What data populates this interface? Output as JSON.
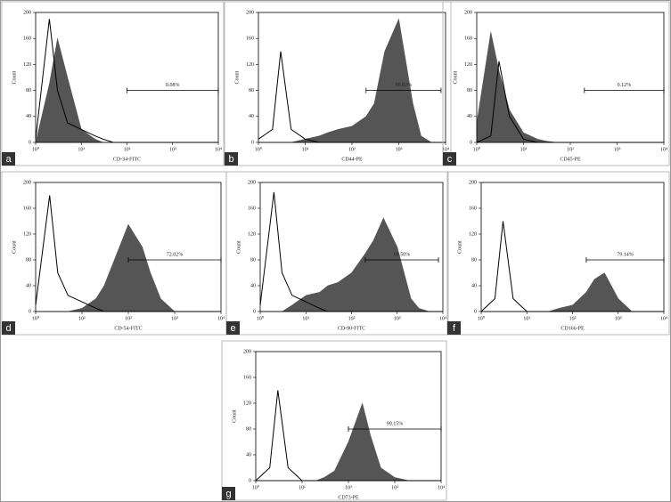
{
  "chart_data": [
    {
      "type": "histogram-overlay",
      "panel": "a",
      "xlabel": "CD-34-FITC",
      "ylabel": "Count",
      "xscale": "log",
      "xlim": [
        1,
        10000
      ],
      "ylim": [
        0,
        200
      ],
      "xticks": [
        {
          "value": 1,
          "label": "10⁰"
        },
        {
          "value": 10,
          "label": "10¹"
        },
        {
          "value": 100,
          "label": "10²"
        },
        {
          "value": 1000,
          "label": "10³"
        },
        {
          "value": 10000,
          "label": "10⁴"
        }
      ],
      "yticks": [
        0,
        40,
        80,
        120,
        160,
        200
      ],
      "x": [
        1,
        2,
        3,
        5,
        10,
        20,
        30,
        50,
        100,
        200,
        300,
        500,
        1000,
        2000,
        3000,
        5000,
        10000
      ],
      "series": [
        {
          "color": "#555555",
          "fill": true,
          "values": [
            0,
            90,
            160,
            100,
            20,
            5,
            0,
            0,
            0,
            0,
            0,
            0,
            0,
            0,
            0,
            0,
            0
          ]
        },
        {
          "color": "#000000",
          "fill": false,
          "values": [
            5,
            190,
            80,
            30,
            20,
            10,
            5,
            0,
            0,
            0,
            0,
            0,
            0,
            0,
            0,
            0,
            0
          ]
        }
      ],
      "gate": {
        "label": "0.08%",
        "x": [
          100,
          10000
        ],
        "y": 80
      }
    },
    {
      "type": "histogram-overlay",
      "panel": "b",
      "xlabel": "CD44-PE",
      "ylabel": "Count",
      "xscale": "log",
      "xlim": [
        1,
        10000
      ],
      "ylim": [
        0,
        200
      ],
      "xticks": [
        {
          "value": 1,
          "label": "10⁰"
        },
        {
          "value": 10,
          "label": "10¹"
        },
        {
          "value": 100,
          "label": "10²"
        },
        {
          "value": 1000,
          "label": "10³"
        },
        {
          "value": 10000,
          "label": "10⁴"
        }
      ],
      "yticks": [
        0,
        40,
        80,
        120,
        160,
        200
      ],
      "x": [
        1,
        2,
        3,
        5,
        10,
        20,
        30,
        50,
        100,
        200,
        300,
        500,
        1000,
        2000,
        3000,
        5000,
        10000
      ],
      "series": [
        {
          "color": "#555555",
          "fill": true,
          "values": [
            0,
            0,
            0,
            0,
            5,
            10,
            15,
            20,
            25,
            40,
            60,
            140,
            190,
            60,
            10,
            0,
            0
          ]
        },
        {
          "color": "#000000",
          "fill": false,
          "values": [
            5,
            20,
            140,
            20,
            5,
            0,
            0,
            0,
            0,
            0,
            0,
            0,
            0,
            0,
            0,
            0,
            0
          ]
        }
      ],
      "gate": {
        "label": "98.82%",
        "x": [
          200,
          8000
        ],
        "y": 80
      }
    },
    {
      "type": "histogram-overlay",
      "panel": "c",
      "xlabel": "CD45-PE",
      "ylabel": "Count",
      "xscale": "log",
      "xlim": [
        1,
        10000
      ],
      "ylim": [
        0,
        200
      ],
      "xticks": [
        {
          "value": 1,
          "label": "10⁰"
        },
        {
          "value": 10,
          "label": "10¹"
        },
        {
          "value": 100,
          "label": "10²"
        },
        {
          "value": 1000,
          "label": "10³"
        },
        {
          "value": 10000,
          "label": "10⁴"
        }
      ],
      "yticks": [
        0,
        40,
        80,
        120,
        160,
        200
      ],
      "x": [
        1,
        2,
        3,
        5,
        10,
        20,
        30,
        50,
        100,
        200,
        300,
        500,
        1000,
        2000,
        3000,
        5000,
        10000
      ],
      "series": [
        {
          "color": "#555555",
          "fill": true,
          "values": [
            30,
            170,
            110,
            50,
            15,
            5,
            2,
            0,
            0,
            0,
            0,
            0,
            0,
            0,
            0,
            0,
            0
          ]
        },
        {
          "color": "#000000",
          "fill": false,
          "values": [
            0,
            10,
            125,
            40,
            5,
            0,
            0,
            0,
            0,
            0,
            0,
            0,
            0,
            0,
            0,
            0,
            0
          ]
        }
      ],
      "gate": {
        "label": "0.12%",
        "x": [
          200,
          10000
        ],
        "y": 80
      }
    },
    {
      "type": "histogram-overlay",
      "panel": "d",
      "xlabel": "CD-54-FITC",
      "ylabel": "Count",
      "xscale": "log",
      "xlim": [
        1,
        10000
      ],
      "ylim": [
        0,
        200
      ],
      "xticks": [
        {
          "value": 1,
          "label": "10⁰"
        },
        {
          "value": 10,
          "label": "10¹"
        },
        {
          "value": 100,
          "label": "10²"
        },
        {
          "value": 1000,
          "label": "10³"
        },
        {
          "value": 10000,
          "label": "10⁴"
        }
      ],
      "yticks": [
        0,
        40,
        80,
        120,
        160,
        200
      ],
      "x": [
        1,
        2,
        3,
        5,
        10,
        20,
        30,
        50,
        100,
        200,
        300,
        500,
        1000,
        2000,
        3000,
        5000,
        10000
      ],
      "series": [
        {
          "color": "#555555",
          "fill": true,
          "values": [
            0,
            0,
            0,
            0,
            5,
            20,
            40,
            80,
            135,
            100,
            60,
            20,
            0,
            0,
            0,
            0,
            0
          ]
        },
        {
          "color": "#000000",
          "fill": false,
          "values": [
            10,
            180,
            60,
            25,
            15,
            5,
            0,
            0,
            0,
            0,
            0,
            0,
            0,
            0,
            0,
            0,
            0
          ]
        }
      ],
      "gate": {
        "label": "72.02%",
        "x": [
          100,
          10000
        ],
        "y": 80
      }
    },
    {
      "type": "histogram-overlay",
      "panel": "e",
      "xlabel": "CD-90-FITC",
      "ylabel": "Count",
      "xscale": "log",
      "xlim": [
        1,
        10000
      ],
      "ylim": [
        0,
        200
      ],
      "xticks": [
        {
          "value": 1,
          "label": "10⁰"
        },
        {
          "value": 10,
          "label": "10¹"
        },
        {
          "value": 100,
          "label": "10²"
        },
        {
          "value": 1000,
          "label": "10³"
        },
        {
          "value": 10000,
          "label": "10⁴"
        }
      ],
      "yticks": [
        0,
        40,
        80,
        120,
        160,
        200
      ],
      "x": [
        1,
        2,
        3,
        5,
        10,
        20,
        30,
        50,
        100,
        200,
        300,
        500,
        1000,
        2000,
        3000,
        5000,
        10000
      ],
      "series": [
        {
          "color": "#555555",
          "fill": true,
          "values": [
            0,
            0,
            0,
            10,
            25,
            30,
            40,
            45,
            60,
            90,
            110,
            145,
            100,
            20,
            5,
            0,
            0
          ]
        },
        {
          "color": "#000000",
          "fill": false,
          "values": [
            10,
            185,
            60,
            25,
            15,
            5,
            0,
            0,
            0,
            0,
            0,
            0,
            0,
            0,
            0,
            0,
            0
          ]
        }
      ],
      "gate": {
        "label": "69.50%",
        "x": [
          200,
          8000
        ],
        "y": 80
      }
    },
    {
      "type": "histogram-overlay",
      "panel": "f",
      "xlabel": "CD166-PE",
      "ylabel": "Count",
      "xscale": "log",
      "xlim": [
        1,
        10000
      ],
      "ylim": [
        0,
        200
      ],
      "xticks": [
        {
          "value": 1,
          "label": "10⁰"
        },
        {
          "value": 10,
          "label": "10¹"
        },
        {
          "value": 100,
          "label": "10²"
        },
        {
          "value": 1000,
          "label": "10³"
        },
        {
          "value": 10000,
          "label": "10⁴"
        }
      ],
      "yticks": [
        0,
        40,
        80,
        120,
        160,
        200
      ],
      "x": [
        1,
        2,
        3,
        5,
        10,
        20,
        30,
        50,
        100,
        200,
        300,
        500,
        1000,
        2000,
        3000,
        5000,
        10000
      ],
      "series": [
        {
          "color": "#555555",
          "fill": true,
          "values": [
            0,
            0,
            0,
            0,
            0,
            0,
            0,
            5,
            10,
            30,
            50,
            60,
            20,
            0,
            0,
            0,
            0
          ]
        },
        {
          "color": "#000000",
          "fill": false,
          "values": [
            0,
            20,
            140,
            20,
            0,
            0,
            0,
            0,
            0,
            0,
            0,
            0,
            0,
            0,
            0,
            0,
            0
          ]
        }
      ],
      "gate": {
        "label": "79.14%",
        "x": [
          200,
          10000
        ],
        "y": 80
      }
    },
    {
      "type": "histogram-overlay",
      "panel": "g",
      "xlabel": "CD73-PE",
      "ylabel": "Count",
      "xscale": "log",
      "xlim": [
        1,
        10000
      ],
      "ylim": [
        0,
        200
      ],
      "xticks": [
        {
          "value": 1,
          "label": "10⁰"
        },
        {
          "value": 10,
          "label": "10¹"
        },
        {
          "value": 100,
          "label": "10²"
        },
        {
          "value": 1000,
          "label": "10³"
        },
        {
          "value": 10000,
          "label": "10⁴"
        }
      ],
      "yticks": [
        0,
        40,
        80,
        120,
        160,
        200
      ],
      "x": [
        1,
        2,
        3,
        5,
        10,
        20,
        30,
        50,
        100,
        200,
        300,
        500,
        1000,
        2000,
        3000,
        5000,
        10000
      ],
      "series": [
        {
          "color": "#555555",
          "fill": true,
          "values": [
            0,
            0,
            0,
            0,
            0,
            0,
            5,
            15,
            60,
            120,
            70,
            20,
            5,
            0,
            0,
            0,
            0
          ]
        },
        {
          "color": "#000000",
          "fill": false,
          "values": [
            0,
            20,
            140,
            20,
            0,
            0,
            0,
            0,
            0,
            0,
            0,
            0,
            0,
            0,
            0,
            0,
            0
          ]
        }
      ],
      "gate": {
        "label": "99.15%",
        "x": [
          100,
          10000
        ],
        "y": 80
      }
    }
  ]
}
